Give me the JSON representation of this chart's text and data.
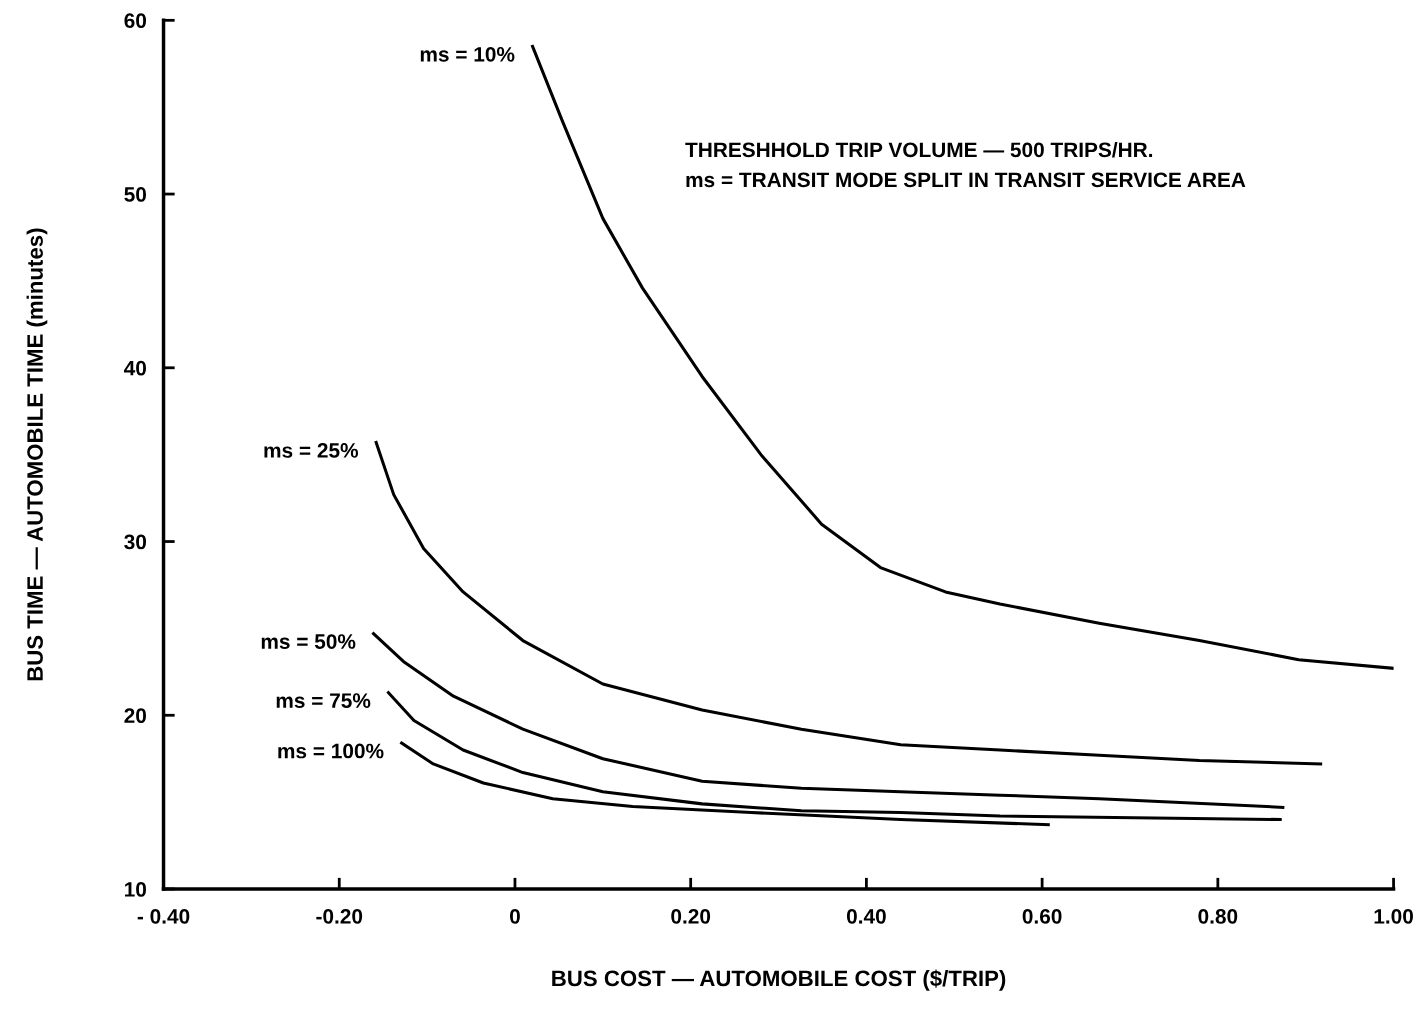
{
  "chart_data": {
    "type": "line",
    "xlabel": "BUS COST — AUTOMOBILE COST ($/TRIP)",
    "ylabel": "BUS TIME — AUTOMOBILE TIME (minutes)",
    "xlim": [
      -0.4,
      1.0
    ],
    "ylim": [
      10,
      60
    ],
    "xticks": [
      {
        "value": -0.4,
        "label": "- 0.40"
      },
      {
        "value": -0.2,
        "label": "-0.20"
      },
      {
        "value": 0,
        "label": "0"
      },
      {
        "value": 0.2,
        "label": "0.20"
      },
      {
        "value": 0.4,
        "label": "0.40"
      },
      {
        "value": 0.6,
        "label": "0.60"
      },
      {
        "value": 0.8,
        "label": "0.80"
      },
      {
        "value": 1.0,
        "label": "1.00"
      }
    ],
    "yticks": [
      10,
      20,
      30,
      40,
      50,
      60
    ],
    "grid": false,
    "legend": false,
    "marker": "none",
    "line_style": "solid",
    "annotations": [
      "THRESHHOLD TRIP VOLUME — 500 TRIPS/HR.\nms = TRANSIT MODE SPLIT IN TRANSIT SERVICE AREA"
    ],
    "series": [
      {
        "name": "ms = 10%",
        "color": "#000000",
        "x": [
          0.02,
          0.054,
          0.1,
          0.145,
          0.213,
          0.28,
          0.349,
          0.416,
          0.49,
          0.552,
          0.665,
          0.779,
          0.892,
          1.0
        ],
        "values": [
          58.5,
          54.2,
          48.6,
          44.6,
          39.5,
          35.0,
          31.0,
          28.5,
          27.1,
          26.4,
          25.3,
          24.3,
          23.2,
          22.7
        ]
      },
      {
        "name": "ms = 25%",
        "color": "#000000",
        "x": [
          -0.158,
          -0.138,
          -0.104,
          -0.059,
          0.009,
          0.1,
          0.213,
          0.326,
          0.439,
          0.552,
          0.665,
          0.779,
          0.917
        ],
        "values": [
          35.7,
          32.7,
          29.6,
          27.1,
          24.3,
          21.8,
          20.3,
          19.2,
          18.3,
          18.0,
          17.7,
          17.4,
          17.2
        ]
      },
      {
        "name": "ms = 50%",
        "color": "#000000",
        "x": [
          -0.161,
          -0.127,
          -0.07,
          0.009,
          0.1,
          0.213,
          0.326,
          0.439,
          0.552,
          0.665,
          0.874
        ],
        "values": [
          24.7,
          23.1,
          21.1,
          19.2,
          17.5,
          16.2,
          15.8,
          15.6,
          15.4,
          15.2,
          14.7
        ]
      },
      {
        "name": "ms = 75%",
        "color": "#000000",
        "x": [
          -0.144,
          -0.115,
          -0.059,
          0.009,
          0.1,
          0.213,
          0.326,
          0.439,
          0.552,
          0.871
        ],
        "values": [
          21.3,
          19.7,
          18.0,
          16.7,
          15.6,
          14.9,
          14.5,
          14.4,
          14.2,
          14.0
        ]
      },
      {
        "name": "ms = 100%",
        "color": "#000000",
        "x": [
          -0.129,
          -0.093,
          -0.036,
          0.043,
          0.134,
          0.269,
          0.439,
          0.607
        ],
        "values": [
          18.4,
          17.2,
          16.1,
          15.2,
          14.75,
          14.4,
          14.0,
          13.7
        ]
      }
    ]
  }
}
